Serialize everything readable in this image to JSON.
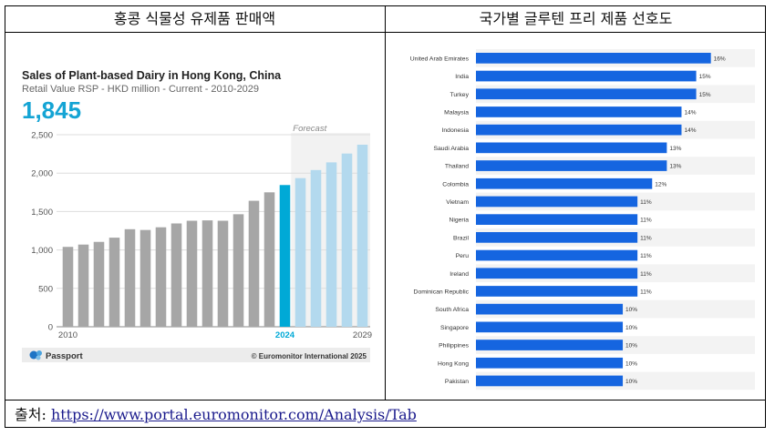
{
  "headers": {
    "left": "홍콩 식물성 유제품 판매액",
    "right": "국가별 글루텐 프리 제품 선호도"
  },
  "source": {
    "label": "출처:",
    "url": "https://www.portal.euromonitor.com/Analysis/Tab"
  },
  "left_panel": {
    "value_big": "1,845",
    "brand": "Passport",
    "copyright": "© Euromonitor International 2025",
    "forecast_label": "Forecast"
  },
  "colors": {
    "historic": "#a6a6a6",
    "current": "#00a9d6",
    "forecast": "#b3d9ee",
    "forecast_bg": "#f2f2f2",
    "big_value": "#14a4d4",
    "country_bar": "#1565e0"
  },
  "chart_data": [
    {
      "type": "bar",
      "title": "Sales of Plant-based Dairy in Hong Kong, China",
      "subtitle": "Retail Value RSP - HKD million - Current - 2010-2029",
      "x": [
        2010,
        2011,
        2012,
        2013,
        2014,
        2015,
        2016,
        2017,
        2018,
        2019,
        2020,
        2021,
        2022,
        2023,
        2024,
        2025,
        2026,
        2027,
        2028,
        2029
      ],
      "values": [
        1040,
        1070,
        1105,
        1160,
        1270,
        1260,
        1295,
        1345,
        1380,
        1385,
        1380,
        1465,
        1640,
        1750,
        1845,
        1935,
        2040,
        2140,
        2255,
        2370
      ],
      "x_tick_labels": [
        "2010",
        "2024",
        "2029"
      ],
      "y_ticks": [
        "0",
        "500",
        "1,000",
        "1,500",
        "2,000",
        "2,500"
      ],
      "ylim": [
        0,
        2500
      ],
      "current_year": 2024,
      "forecast_from": 2025,
      "grid": true
    },
    {
      "type": "bar",
      "orientation": "horizontal",
      "categories": [
        "United Arab Emirates",
        "India",
        "Turkey",
        "Malaysia",
        "Indonesia",
        "Saudi Arabia",
        "Thailand",
        "Colombia",
        "Vietnam",
        "Nigeria",
        "Brazil",
        "Peru",
        "Ireland",
        "Dominican Republic",
        "South Africa",
        "Singapore",
        "Philippines",
        "Hong Kong",
        "Pakistan"
      ],
      "values": [
        16,
        15,
        15,
        14,
        14,
        13,
        13,
        12,
        11,
        11,
        11,
        11,
        11,
        11,
        10,
        10,
        10,
        10,
        10
      ],
      "value_labels": [
        "16%",
        "15%",
        "15%",
        "14%",
        "14%",
        "13%",
        "13%",
        "12%",
        "11%",
        "11%",
        "11%",
        "11%",
        "11%",
        "11%",
        "10%",
        "10%",
        "10%",
        "10%",
        "10%"
      ],
      "xlim": [
        0,
        19
      ]
    }
  ]
}
